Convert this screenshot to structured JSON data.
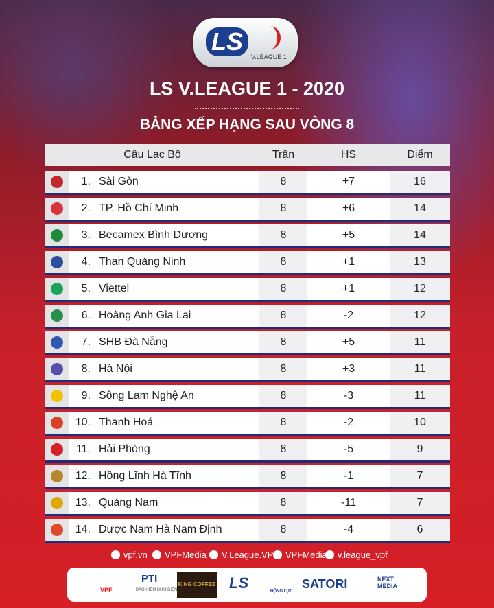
{
  "header": {
    "logo_main": "LS",
    "logo_sub": "V.LEAGUE 1",
    "title": "LS V.LEAGUE 1 - 2020",
    "subtitle": "BẢNG XẾP HẠNG SAU VÒNG 8"
  },
  "table": {
    "columns": [
      "Câu Lạc Bộ",
      "Trận",
      "HS",
      "Điểm"
    ],
    "rows": [
      [
        "1.",
        "Sài Gòn",
        8,
        "+7",
        16
      ],
      [
        "2.",
        "TP. Hồ Chí Minh",
        8,
        "+6",
        14
      ],
      [
        "3.",
        "Becamex Bình Dương",
        8,
        "+5",
        14
      ],
      [
        "4.",
        "Than Quảng Ninh",
        8,
        "+1",
        13
      ],
      [
        "5.",
        "Viettel",
        8,
        "+1",
        12
      ],
      [
        "6.",
        "Hoàng Anh Gia Lai",
        8,
        "-2",
        12
      ],
      [
        "7.",
        "SHB Đà Nẵng",
        8,
        "+5",
        11
      ],
      [
        "8.",
        "Hà Nội",
        8,
        "+3",
        11
      ],
      [
        "9.",
        "Sông Lam Nghệ An",
        8,
        "-3",
        11
      ],
      [
        "10.",
        "Thanh Hoá",
        8,
        "-2",
        10
      ],
      [
        "11.",
        "Hải Phòng",
        8,
        "-5",
        9
      ],
      [
        "12.",
        "Hồng Lĩnh Hà Tĩnh",
        8,
        "-1",
        7
      ],
      [
        "13.",
        "Quảng Nam",
        8,
        "-11",
        7
      ],
      [
        "14.",
        "Dược Nam Hà Nam Định",
        8,
        "-4",
        6
      ]
    ]
  },
  "social": [
    "vpf.vn",
    "VPFMedia",
    "V.League.VPF",
    "VPFMedia",
    "v.league_vpf"
  ],
  "sponsors": [
    "VPF",
    "PTI",
    "BẢO HIỂM BƯU ĐIỆN",
    "KING COFFEE",
    "LS",
    "ĐỘNG LỰC",
    "SATORI",
    "NEXT MEDIA"
  ]
}
